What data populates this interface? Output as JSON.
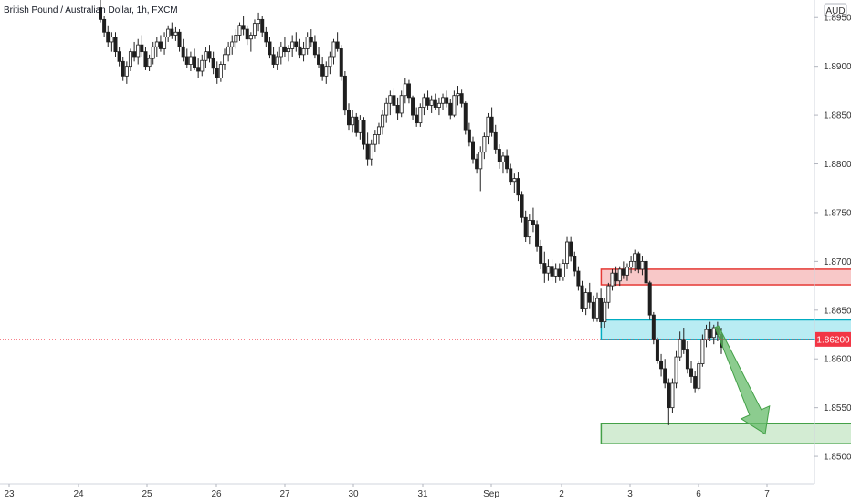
{
  "header": {
    "symbol_title": "British Pound / Australian Dollar, 1h, FXCM",
    "currency_badge": "AUD"
  },
  "price_marker": {
    "value": 1.862,
    "label": "1.86200",
    "color": "#f23645"
  },
  "colors": {
    "up": "#26a69a",
    "down": "#ef5350",
    "wick": "#222222",
    "resistance": "#e53935",
    "resistance_fill": "#f8c8c8",
    "pivot": "#00acc1",
    "pivot_fill": "#b9ecf3",
    "target": "#43a047",
    "target_fill": "#d3ecd3",
    "arrow": "#66bb6a"
  },
  "chart_data": {
    "type": "candlestick",
    "title": "British Pound / Australian Dollar, 1h, FXCM",
    "y_axis": {
      "ylim": [
        1.8472,
        1.8968
      ],
      "tick_values": [
        1.895,
        1.89,
        1.885,
        1.88,
        1.875,
        1.87,
        1.865,
        1.86,
        1.855,
        1.85
      ],
      "tick_labels": [
        "1.89500",
        "1.89000",
        "1.88500",
        "1.88000",
        "1.87500",
        "1.87000",
        "1.86500",
        "1.86000",
        "1.85500",
        "1.85000"
      ],
      "position": "right"
    },
    "x_axis": {
      "tick_labels": [
        "23",
        "24",
        "25",
        "26",
        "27",
        "30",
        "31",
        "Sep",
        "2",
        "3",
        "6",
        "7"
      ],
      "tick_index": [
        -90,
        -30,
        45,
        120,
        195,
        270,
        345,
        420,
        495,
        570,
        645,
        720
      ]
    },
    "grid": false,
    "zones": [
      {
        "name": "resistance-zone",
        "from_index": 457,
        "to_index": 764,
        "y_low": 1.8676,
        "y_high": 1.8692
      },
      {
        "name": "pivot-zone",
        "from_index": 457,
        "to_index": 764,
        "y_low": 1.862,
        "y_high": 1.864
      },
      {
        "name": "target-zone",
        "from_index": 457,
        "to_index": 764,
        "y_low": 1.8513,
        "y_high": 1.8534
      }
    ],
    "projection_arrow": {
      "from_index": 667,
      "from_y": 1.8633,
      "to_index": 718,
      "to_y": 1.8523
    },
    "candles": [
      [
        1.896,
        1.898,
        1.8945,
        1.8948
      ],
      [
        1.8948,
        1.8952,
        1.893,
        1.8935
      ],
      [
        1.8935,
        1.8942,
        1.892,
        1.8925
      ],
      [
        1.8925,
        1.8935,
        1.8915,
        1.893
      ],
      [
        1.893,
        1.8935,
        1.891,
        1.8915
      ],
      [
        1.8915,
        1.892,
        1.89,
        1.8905
      ],
      [
        1.8905,
        1.891,
        1.8885,
        1.889
      ],
      [
        1.889,
        1.8905,
        1.8882,
        1.89
      ],
      [
        1.89,
        1.8918,
        1.8895,
        1.8915
      ],
      [
        1.8915,
        1.8925,
        1.8905,
        1.891
      ],
      [
        1.891,
        1.8928,
        1.8902,
        1.8922
      ],
      [
        1.8922,
        1.8932,
        1.891,
        1.8915
      ],
      [
        1.8915,
        1.892,
        1.8896,
        1.89
      ],
      [
        1.89,
        1.8912,
        1.8895,
        1.8908
      ],
      [
        1.8908,
        1.8925,
        1.8902,
        1.892
      ],
      [
        1.892,
        1.893,
        1.891,
        1.8925
      ],
      [
        1.8925,
        1.8932,
        1.8915,
        1.8918
      ],
      [
        1.8918,
        1.8935,
        1.8912,
        1.893
      ],
      [
        1.893,
        1.8942,
        1.8925,
        1.8938
      ],
      [
        1.8938,
        1.8945,
        1.8928,
        1.8932
      ],
      [
        1.8932,
        1.894,
        1.8926,
        1.8935
      ],
      [
        1.8935,
        1.8938,
        1.8915,
        1.892
      ],
      [
        1.892,
        1.8928,
        1.8905,
        1.891
      ],
      [
        1.891,
        1.8918,
        1.8898,
        1.8902
      ],
      [
        1.8902,
        1.8915,
        1.8895,
        1.891
      ],
      [
        1.891,
        1.8918,
        1.8896,
        1.8899
      ],
      [
        1.8899,
        1.8908,
        1.8888,
        1.8895
      ],
      [
        1.8895,
        1.8912,
        1.889,
        1.8906
      ],
      [
        1.8906,
        1.892,
        1.8898,
        1.8915
      ],
      [
        1.8915,
        1.8922,
        1.8904,
        1.8908
      ],
      [
        1.8908,
        1.8915,
        1.8892,
        1.8898
      ],
      [
        1.8898,
        1.8905,
        1.8882,
        1.8888
      ],
      [
        1.8888,
        1.8905,
        1.8884,
        1.8902
      ],
      [
        1.8902,
        1.8918,
        1.8896,
        1.8912
      ],
      [
        1.8912,
        1.8925,
        1.8905,
        1.892
      ],
      [
        1.892,
        1.8932,
        1.8912,
        1.8925
      ],
      [
        1.8925,
        1.8938,
        1.8918,
        1.8932
      ],
      [
        1.8932,
        1.8945,
        1.8926,
        1.8942
      ],
      [
        1.8942,
        1.8952,
        1.8932,
        1.8938
      ],
      [
        1.8938,
        1.8942,
        1.8922,
        1.8928
      ],
      [
        1.8928,
        1.8935,
        1.8915,
        1.8932
      ],
      [
        1.8932,
        1.8948,
        1.8928,
        1.8944
      ],
      [
        1.8944,
        1.8955,
        1.8936,
        1.8948
      ],
      [
        1.8948,
        1.8952,
        1.893,
        1.8935
      ],
      [
        1.8935,
        1.894,
        1.892,
        1.8925
      ],
      [
        1.8925,
        1.893,
        1.8908,
        1.8912
      ],
      [
        1.8912,
        1.892,
        1.8898,
        1.8902
      ],
      [
        1.8902,
        1.8915,
        1.8896,
        1.891
      ],
      [
        1.891,
        1.8925,
        1.8902,
        1.892
      ],
      [
        1.892,
        1.893,
        1.891,
        1.8915
      ],
      [
        1.8915,
        1.8922,
        1.8905,
        1.8918
      ],
      [
        1.8918,
        1.8932,
        1.891,
        1.8925
      ],
      [
        1.8925,
        1.8935,
        1.8915,
        1.892
      ],
      [
        1.892,
        1.8928,
        1.8908,
        1.8912
      ],
      [
        1.8912,
        1.8925,
        1.8905,
        1.8918
      ],
      [
        1.8918,
        1.8935,
        1.8912,
        1.893
      ],
      [
        1.893,
        1.8938,
        1.892,
        1.8925
      ],
      [
        1.8925,
        1.8932,
        1.8908,
        1.8912
      ],
      [
        1.8912,
        1.892,
        1.8898,
        1.8902
      ],
      [
        1.8902,
        1.891,
        1.8885,
        1.889
      ],
      [
        1.889,
        1.8905,
        1.8882,
        1.89
      ],
      [
        1.89,
        1.8915,
        1.8892,
        1.891
      ],
      [
        1.891,
        1.8928,
        1.8902,
        1.8925
      ],
      [
        1.8925,
        1.8935,
        1.8915,
        1.8918
      ],
      [
        1.8918,
        1.8922,
        1.8885,
        1.889
      ],
      [
        1.889,
        1.8895,
        1.885,
        1.8855
      ],
      [
        1.8855,
        1.8862,
        1.8835,
        1.884
      ],
      [
        1.884,
        1.8855,
        1.8832,
        1.8848
      ],
      [
        1.8848,
        1.8852,
        1.8828,
        1.8832
      ],
      [
        1.8832,
        1.885,
        1.8825,
        1.8845
      ],
      [
        1.8845,
        1.8848,
        1.8815,
        1.882
      ],
      [
        1.882,
        1.8832,
        1.8798,
        1.8805
      ],
      [
        1.8805,
        1.8825,
        1.8798,
        1.882
      ],
      [
        1.882,
        1.8835,
        1.8812,
        1.883
      ],
      [
        1.883,
        1.8842,
        1.882,
        1.8838
      ],
      [
        1.8838,
        1.8855,
        1.883,
        1.885
      ],
      [
        1.885,
        1.8868,
        1.8842,
        1.8862
      ],
      [
        1.8862,
        1.8875,
        1.885,
        1.887
      ],
      [
        1.887,
        1.8878,
        1.8855,
        1.886
      ],
      [
        1.886,
        1.8868,
        1.8845,
        1.8852
      ],
      [
        1.8852,
        1.8875,
        1.8848,
        1.887
      ],
      [
        1.887,
        1.8888,
        1.8862,
        1.8882
      ],
      [
        1.8882,
        1.8886,
        1.8862,
        1.8868
      ],
      [
        1.8868,
        1.887,
        1.8845,
        1.885
      ],
      [
        1.885,
        1.8858,
        1.8838,
        1.8842
      ],
      [
        1.8842,
        1.8862,
        1.8838,
        1.8858
      ],
      [
        1.8858,
        1.8872,
        1.885,
        1.8868
      ],
      [
        1.8868,
        1.8875,
        1.8855,
        1.886
      ],
      [
        1.886,
        1.887,
        1.8852,
        1.8865
      ],
      [
        1.8865,
        1.8872,
        1.8855,
        1.8858
      ],
      [
        1.8858,
        1.8868,
        1.885,
        1.8862
      ],
      [
        1.8862,
        1.8872,
        1.8855,
        1.8868
      ],
      [
        1.8868,
        1.8875,
        1.8858,
        1.8862
      ],
      [
        1.8862,
        1.8866,
        1.8846,
        1.885
      ],
      [
        1.885,
        1.8875,
        1.8848,
        1.887
      ],
      [
        1.887,
        1.888,
        1.886,
        1.8872
      ],
      [
        1.8872,
        1.8876,
        1.8858,
        1.8862
      ],
      [
        1.8862,
        1.8864,
        1.883,
        1.8835
      ],
      [
        1.8835,
        1.8842,
        1.8818,
        1.8822
      ],
      [
        1.8822,
        1.8828,
        1.88,
        1.8805
      ],
      [
        1.8805,
        1.881,
        1.879,
        1.8795
      ],
      [
        1.8795,
        1.8818,
        1.8772,
        1.8812
      ],
      [
        1.8812,
        1.8832,
        1.8805,
        1.8828
      ],
      [
        1.8828,
        1.8852,
        1.882,
        1.8848
      ],
      [
        1.8848,
        1.8858,
        1.8828,
        1.8832
      ],
      [
        1.8832,
        1.884,
        1.881,
        1.8815
      ],
      [
        1.8815,
        1.882,
        1.8795,
        1.8802
      ],
      [
        1.8802,
        1.8812,
        1.879,
        1.8808
      ],
      [
        1.8808,
        1.8815,
        1.879,
        1.8795
      ],
      [
        1.8795,
        1.88,
        1.8778,
        1.8782
      ],
      [
        1.8782,
        1.879,
        1.877,
        1.8785
      ],
      [
        1.8785,
        1.8792,
        1.8762,
        1.8768
      ],
      [
        1.8768,
        1.8772,
        1.874,
        1.8745
      ],
      [
        1.8745,
        1.8752,
        1.872,
        1.8725
      ],
      [
        1.8725,
        1.8748,
        1.8718,
        1.8742
      ],
      [
        1.8742,
        1.8755,
        1.873,
        1.8738
      ],
      [
        1.8738,
        1.8742,
        1.871,
        1.8715
      ],
      [
        1.8715,
        1.8722,
        1.8692,
        1.8698
      ],
      [
        1.8698,
        1.871,
        1.8678,
        1.8688
      ],
      [
        1.8688,
        1.8702,
        1.868,
        1.8695
      ],
      [
        1.8695,
        1.8702,
        1.868,
        1.8685
      ],
      [
        1.8685,
        1.8698,
        1.8678,
        1.8692
      ],
      [
        1.8692,
        1.8698,
        1.868,
        1.8684
      ],
      [
        1.8684,
        1.8702,
        1.868,
        1.8698
      ],
      [
        1.8698,
        1.8725,
        1.8692,
        1.872
      ],
      [
        1.872,
        1.8725,
        1.87,
        1.8705
      ],
      [
        1.8705,
        1.871,
        1.8685,
        1.869
      ],
      [
        1.869,
        1.8695,
        1.867,
        1.8675
      ],
      [
        1.8675,
        1.868,
        1.8648,
        1.8652
      ],
      [
        1.8652,
        1.8672,
        1.8645,
        1.8668
      ],
      [
        1.8668,
        1.8678,
        1.8652,
        1.8658
      ],
      [
        1.8658,
        1.8665,
        1.8638,
        1.8642
      ],
      [
        1.8642,
        1.8668,
        1.8638,
        1.8662
      ],
      [
        1.8662,
        1.8672,
        1.8632,
        1.8638
      ],
      [
        1.8638,
        1.8662,
        1.8632,
        1.8658
      ],
      [
        1.8658,
        1.8678,
        1.8652,
        1.8675
      ],
      [
        1.8675,
        1.8692,
        1.867,
        1.8688
      ],
      [
        1.8688,
        1.8695,
        1.8675,
        1.868
      ],
      [
        1.868,
        1.8695,
        1.8675,
        1.8692
      ],
      [
        1.8692,
        1.87,
        1.8682,
        1.8686
      ],
      [
        1.8686,
        1.8698,
        1.868,
        1.8694
      ],
      [
        1.8694,
        1.8705,
        1.8688,
        1.87
      ],
      [
        1.87,
        1.8712,
        1.869,
        1.8708
      ],
      [
        1.8708,
        1.871,
        1.8688,
        1.8692
      ],
      [
        1.8692,
        1.8705,
        1.8686,
        1.87
      ],
      [
        1.87,
        1.8702,
        1.8675,
        1.8678
      ],
      [
        1.8678,
        1.868,
        1.864,
        1.8645
      ],
      [
        1.8645,
        1.8648,
        1.8615,
        1.862
      ],
      [
        1.862,
        1.8622,
        1.8595,
        1.8598
      ],
      [
        1.8598,
        1.8605,
        1.8582,
        1.859
      ],
      [
        1.859,
        1.86,
        1.857,
        1.8575
      ],
      [
        1.8575,
        1.858,
        1.8532,
        1.855
      ],
      [
        1.855,
        1.858,
        1.8545,
        1.8575
      ],
      [
        1.8575,
        1.8608,
        1.857,
        1.8602
      ],
      [
        1.8602,
        1.8628,
        1.8598,
        1.862
      ],
      [
        1.862,
        1.8632,
        1.8605,
        1.861
      ],
      [
        1.861,
        1.8618,
        1.8585,
        1.859
      ],
      [
        1.859,
        1.8598,
        1.8575,
        1.8582
      ],
      [
        1.8582,
        1.8588,
        1.8565,
        1.857
      ],
      [
        1.857,
        1.8598,
        1.8568,
        1.8595
      ],
      [
        1.8595,
        1.8625,
        1.8592,
        1.862
      ],
      [
        1.862,
        1.8635,
        1.8612,
        1.863
      ],
      [
        1.863,
        1.8638,
        1.8618,
        1.8622
      ],
      [
        1.8622,
        1.8635,
        1.8615,
        1.8632
      ],
      [
        1.8632,
        1.8638,
        1.8618,
        1.8625
      ],
      [
        1.8625,
        1.8632,
        1.8605,
        1.8612
      ]
    ]
  }
}
